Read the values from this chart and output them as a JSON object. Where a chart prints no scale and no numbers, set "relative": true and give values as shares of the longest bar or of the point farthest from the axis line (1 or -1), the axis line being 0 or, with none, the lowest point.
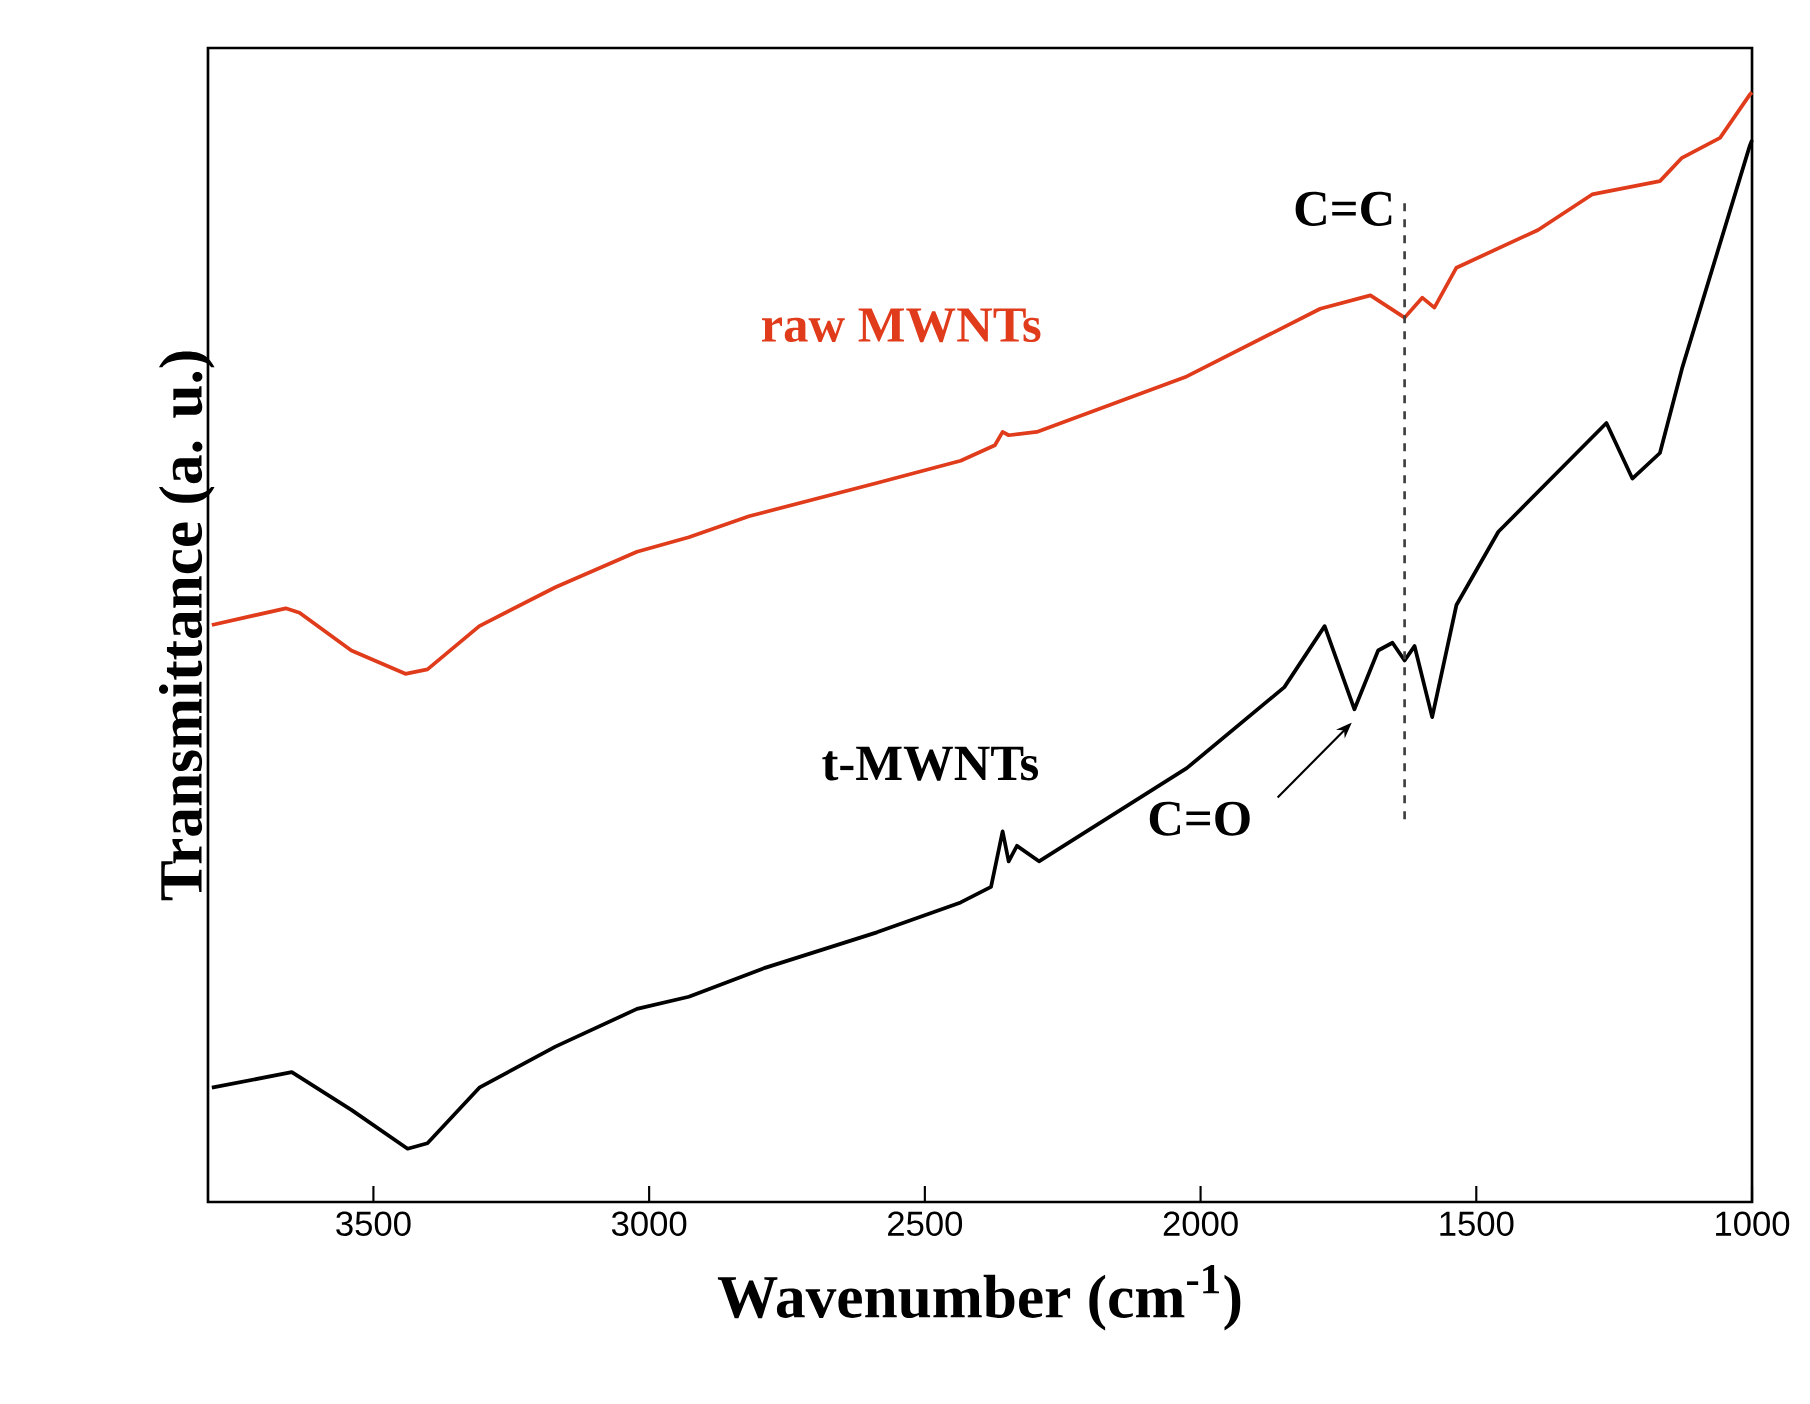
{
  "chart_data": {
    "type": "line",
    "xlabel": "Wavenumber (cm$^{-1}$)",
    "ylabel": "Transmittance (a. u.)",
    "relative": true,
    "xlim": [
      3800,
      1000
    ],
    "xticks": [
      3500,
      3000,
      2500,
      2000,
      1500,
      1000
    ],
    "series": [
      {
        "name": "raw MWNTs",
        "color": "#e03c1c",
        "x": [
          3793,
          3659,
          3634,
          3540,
          3442,
          3402,
          3308,
          3170,
          3022,
          2928,
          2819,
          2587,
          2435,
          2373,
          2359,
          2348,
          2297,
          2025,
          1783,
          1692,
          1630,
          1598,
          1576,
          1536,
          1388,
          1290,
          1167,
          1127,
          1058,
          1004,
          1000
        ],
        "values": [
          0.52,
          0.535,
          0.531,
          0.497,
          0.476,
          0.48,
          0.519,
          0.554,
          0.586,
          0.599,
          0.618,
          0.648,
          0.668,
          0.682,
          0.694,
          0.691,
          0.694,
          0.744,
          0.805,
          0.817,
          0.797,
          0.815,
          0.806,
          0.842,
          0.876,
          0.908,
          0.92,
          0.941,
          0.959,
          0.998,
          1.0
        ]
      },
      {
        "name": "t-MWNTs",
        "color": "#000000",
        "x": [
          3793,
          3648,
          3540,
          3438,
          3402,
          3308,
          3170,
          3022,
          2928,
          2790,
          2587,
          2435,
          2380,
          2359,
          2348,
          2333,
          2293,
          2025,
          1848,
          1775,
          1721,
          1678,
          1652,
          1630,
          1612,
          1580,
          1536,
          1460,
          1264,
          1217,
          1167,
          1127,
          1004,
          1000
        ],
        "values": [
          0.103,
          0.117,
          0.083,
          0.048,
          0.053,
          0.103,
          0.14,
          0.174,
          0.185,
          0.211,
          0.243,
          0.27,
          0.284,
          0.334,
          0.307,
          0.321,
          0.307,
          0.391,
          0.464,
          0.519,
          0.444,
          0.497,
          0.504,
          0.488,
          0.501,
          0.437,
          0.538,
          0.604,
          0.702,
          0.652,
          0.675,
          0.751,
          0.952,
          0.957
        ]
      }
    ],
    "ref_lines": [
      {
        "axis": "x",
        "value": 1630,
        "label": "C=C",
        "color": "#404040",
        "line_style": "dashed"
      }
    ],
    "annotations": [
      {
        "text": "C=O",
        "x": 1721,
        "y": 0.444
      }
    ]
  }
}
